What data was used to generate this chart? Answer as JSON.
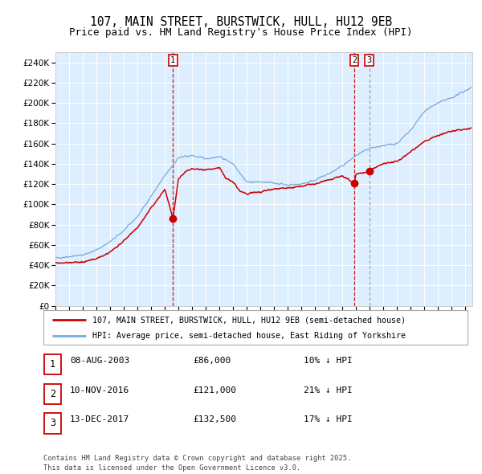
{
  "title": "107, MAIN STREET, BURSTWICK, HULL, HU12 9EB",
  "subtitle": "Price paid vs. HM Land Registry's House Price Index (HPI)",
  "legend_red": "107, MAIN STREET, BURSTWICK, HULL, HU12 9EB (semi-detached house)",
  "legend_blue": "HPI: Average price, semi-detached house, East Riding of Yorkshire",
  "footer": "Contains HM Land Registry data © Crown copyright and database right 2025.\nThis data is licensed under the Open Government Licence v3.0.",
  "xlim_start": 1995.0,
  "xlim_end": 2025.5,
  "ylim_min": 0,
  "ylim_max": 250000,
  "ytick_step": 20000,
  "sale_dates": [
    2003.6,
    2016.86,
    2017.95
  ],
  "sale_prices": [
    86000,
    121000,
    132500
  ],
  "sale_labels": [
    "1",
    "2",
    "3"
  ],
  "vline_colors": [
    "#cc0000",
    "#cc0000",
    "#999999"
  ],
  "table_data": [
    [
      "1",
      "08-AUG-2003",
      "£86,000",
      "10% ↓ HPI"
    ],
    [
      "2",
      "10-NOV-2016",
      "£121,000",
      "21% ↓ HPI"
    ],
    [
      "3",
      "13-DEC-2017",
      "£132,500",
      "17% ↓ HPI"
    ]
  ],
  "red_color": "#cc0000",
  "blue_color": "#7aaadd",
  "bg_color": "#ddeeff",
  "grid_color": "#ffffff",
  "title_fontsize": 10.5,
  "subtitle_fontsize": 9,
  "tick_fontsize": 7,
  "ytick_fontsize": 7.5
}
